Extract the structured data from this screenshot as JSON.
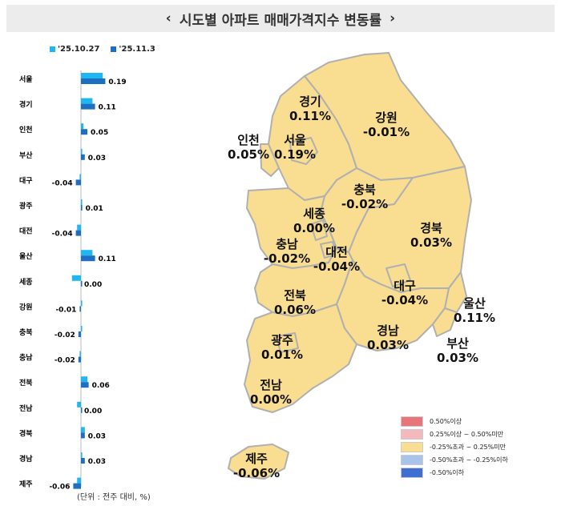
{
  "title": "시도별 아파트 매매가격지수 변동률",
  "title_prev_icon": "chevron-left-icon",
  "title_next_icon": "chevron-right-icon",
  "note": "(단위 : 전주 대비, %)",
  "colors": {
    "prev_week": "#1fb6f2",
    "this_week": "#1e6fc2",
    "map_fill": "#f9dd91",
    "map_stroke": "#b0b0b0"
  },
  "chart_data": {
    "type": "bar",
    "orientation": "horizontal",
    "categories": [
      "서울",
      "경기",
      "인천",
      "부산",
      "대구",
      "광주",
      "대전",
      "울산",
      "세종",
      "강원",
      "충북",
      "충남",
      "전북",
      "전남",
      "경북",
      "경남",
      "제주"
    ],
    "series": [
      {
        "name": "'25.10.27",
        "values": [
          0.17,
          0.09,
          0.02,
          0.01,
          -0.01,
          0.0,
          -0.03,
          0.09,
          -0.07,
          0.01,
          0.0,
          -0.01,
          0.05,
          -0.03,
          0.03,
          0.01,
          -0.03
        ]
      },
      {
        "name": "'25.11.3",
        "values": [
          0.19,
          0.11,
          0.05,
          0.03,
          -0.04,
          0.01,
          -0.04,
          0.11,
          0.0,
          -0.01,
          -0.02,
          -0.02,
          0.06,
          0.0,
          0.03,
          0.03,
          -0.06
        ]
      }
    ],
    "data_labels": [
      "0.19",
      "0.11",
      "0.05",
      "0.03",
      "-0.04",
      "0.01",
      "-0.04",
      "0.11",
      "0.00",
      "-0.01",
      "-0.02",
      "-0.02",
      "0.06",
      "0.00",
      "0.03",
      "0.03",
      "-0.06"
    ]
  },
  "map": {
    "regions": [
      {
        "name": "경기",
        "value": "0.11%"
      },
      {
        "name": "강원",
        "value": "-0.01%"
      },
      {
        "name": "인천",
        "value": "0.05%"
      },
      {
        "name": "서울",
        "value": "0.19%"
      },
      {
        "name": "충북",
        "value": "-0.02%"
      },
      {
        "name": "세종",
        "value": "0.00%"
      },
      {
        "name": "경북",
        "value": "0.03%"
      },
      {
        "name": "충남",
        "value": "-0.02%"
      },
      {
        "name": "대전",
        "value": "-0.04%"
      },
      {
        "name": "대구",
        "value": "-0.04%"
      },
      {
        "name": "전북",
        "value": "0.06%"
      },
      {
        "name": "울산",
        "value": "0.11%"
      },
      {
        "name": "광주",
        "value": "0.01%"
      },
      {
        "name": "경남",
        "value": "0.03%"
      },
      {
        "name": "부산",
        "value": "0.03%"
      },
      {
        "name": "전남",
        "value": "0.00%"
      },
      {
        "name": "제주",
        "value": "-0.06%"
      }
    ],
    "legend": [
      {
        "label": "0.50%이상",
        "color": "#e8757a"
      },
      {
        "label": "0.25%이상 ~ 0.50%미만",
        "color": "#f3b9bd"
      },
      {
        "label": "-0.25%초과 ~ 0.25%미만",
        "color": "#f9dd91"
      },
      {
        "label": "-0.50%초과 ~ -0.25%이하",
        "color": "#a9c4ea"
      },
      {
        "label": "-0.50%이하",
        "color": "#3f6fd1"
      }
    ]
  }
}
